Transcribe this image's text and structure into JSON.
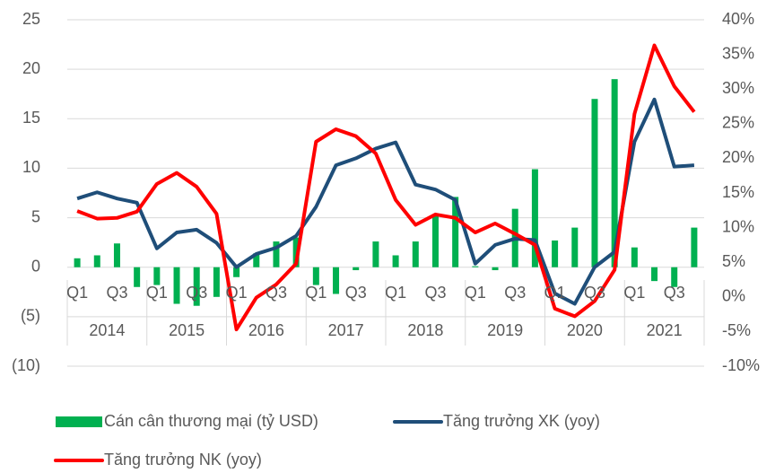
{
  "chart_data": {
    "type": "bar-line",
    "categories": [
      "Q1",
      null,
      "Q3",
      null,
      "Q1",
      null,
      "Q3",
      null,
      "Q1",
      null,
      "Q3",
      null,
      "Q1",
      null,
      "Q3",
      null,
      "Q1",
      null,
      "Q3",
      null,
      "Q1",
      null,
      "Q3",
      null,
      "Q1",
      null,
      "Q3",
      null,
      "Q1",
      null,
      "Q3",
      null
    ],
    "years": [
      "2014",
      "2015",
      "2016",
      "2017",
      "2018",
      "2019",
      "2020",
      "2021"
    ],
    "series": [
      {
        "name": "Cán cân thương mại (tỷ USD)",
        "type": "bar",
        "color": "#00b050",
        "values": [
          0.9,
          1.2,
          2.4,
          -2.0,
          -1.8,
          -3.7,
          -3.9,
          -3.0,
          -1.0,
          1.4,
          2.6,
          3.0,
          -1.8,
          -2.7,
          -0.3,
          2.6,
          1.2,
          2.6,
          5.2,
          7.1,
          0.1,
          -0.3,
          5.9,
          9.9,
          2.7,
          4.0,
          17.0,
          19.0,
          2.0,
          -1.4,
          -2.0,
          4.0
        ]
      },
      {
        "name": "Tăng trưởng XK (yoy)",
        "type": "line",
        "axis": "y2",
        "color": "#1f4e79",
        "values": [
          14.2,
          15.1,
          14.2,
          13.6,
          7.0,
          9.3,
          9.7,
          7.8,
          4.3,
          6.2,
          7.1,
          8.8,
          13.0,
          19.0,
          20.0,
          21.4,
          22.3,
          16.2,
          15.5,
          14.0,
          4.8,
          7.5,
          8.4,
          8.2,
          0.5,
          -1.0,
          4.3,
          6.5,
          22.4,
          28.5,
          18.8,
          19.0
        ]
      },
      {
        "name": "Tăng trưởng NK (yoy)",
        "type": "line",
        "axis": "y2",
        "color": "#ff0000",
        "values": [
          12.4,
          11.3,
          11.4,
          12.3,
          16.3,
          17.9,
          15.9,
          12.0,
          -4.7,
          -0.1,
          1.8,
          4.8,
          22.4,
          24.2,
          23.2,
          20.7,
          14.0,
          10.4,
          11.9,
          11.4,
          9.3,
          10.6,
          9.1,
          7.5,
          -1.7,
          -2.8,
          -0.6,
          3.9,
          26.4,
          36.3,
          30.4,
          26.7
        ]
      }
    ],
    "ylim": [
      -10,
      25
    ],
    "yticks": [
      {
        "value": -10,
        "label": "(10)"
      },
      {
        "value": -5,
        "label": "(5)"
      },
      0,
      5,
      10,
      15,
      20,
      25
    ],
    "y2lim": [
      -10,
      40
    ],
    "y2ticks": [
      {
        "value": -10,
        "label": "-10%"
      },
      {
        "value": -5,
        "label": "-5%"
      },
      {
        "value": 0,
        "label": "0%"
      },
      {
        "value": 5,
        "label": "5%"
      },
      {
        "value": 10,
        "label": "10%"
      },
      {
        "value": 15,
        "label": "15%"
      },
      {
        "value": 20,
        "label": "20%"
      },
      {
        "value": 25,
        "label": "25%"
      },
      {
        "value": 30,
        "label": "30%"
      },
      {
        "value": 35,
        "label": "35%"
      },
      {
        "value": 40,
        "label": "40%"
      }
    ],
    "grid": true
  }
}
